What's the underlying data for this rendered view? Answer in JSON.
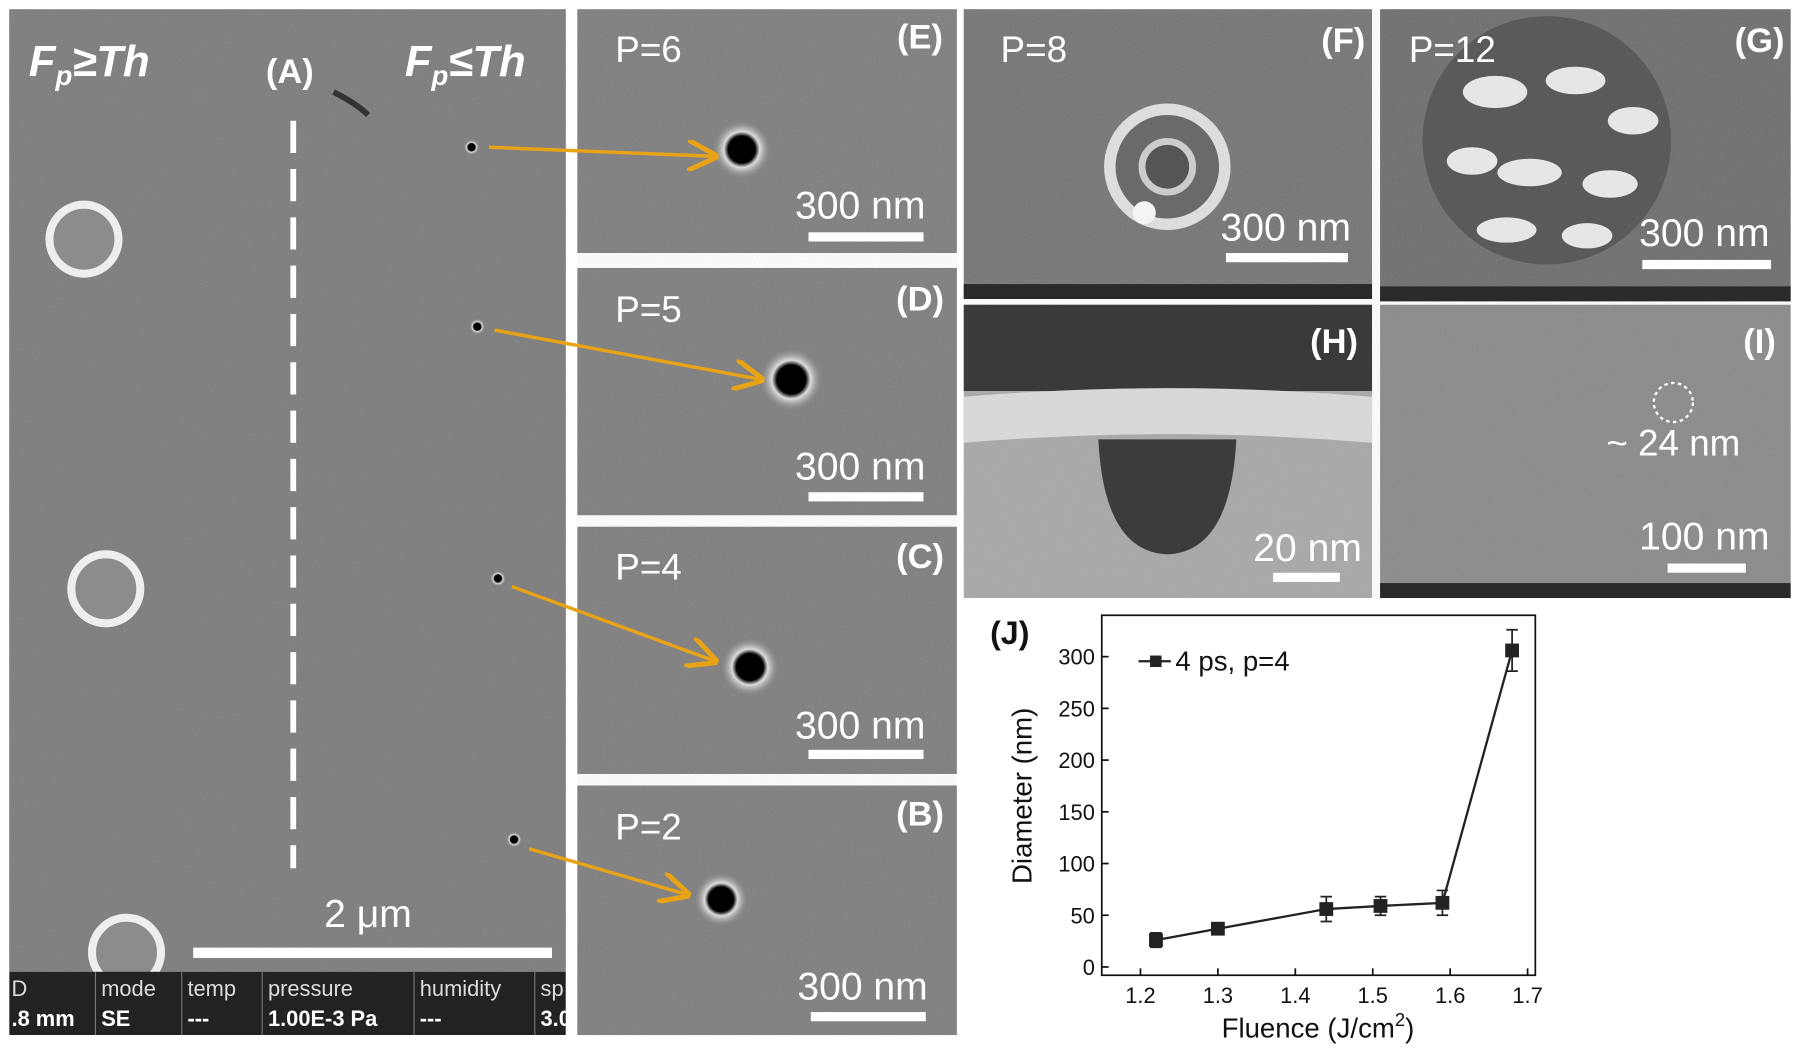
{
  "panels": {
    "A": {
      "label": "(A)",
      "left_heading": {
        "main": "F",
        "sub": "p",
        "rest": "≥Th"
      },
      "right_heading": {
        "main": "F",
        "sub": "p",
        "rest": "≤Th"
      },
      "scale": "2 μm"
    },
    "E": {
      "label": "(E)",
      "pulses": "P=6",
      "scale": "300 nm"
    },
    "D": {
      "label": "(D)",
      "pulses": "P=5",
      "scale": "300 nm"
    },
    "C": {
      "label": "(C)",
      "pulses": "P=4",
      "scale": "300 nm"
    },
    "B": {
      "label": "(B)",
      "pulses": "P=2",
      "scale": "300 nm"
    },
    "F": {
      "label": "(F)",
      "pulses": "P=8",
      "scale": "300 nm"
    },
    "G": {
      "label": "(G)",
      "pulses": "P=12",
      "scale": "300 nm"
    },
    "H": {
      "label": "(H)",
      "scale": "20 nm"
    },
    "I": {
      "label": "(I)",
      "annotation": "~ 24 nm",
      "scale": "100 nm"
    }
  },
  "info_bar": {
    "headers": [
      "D",
      "mode",
      "temp",
      "pressure",
      "humidity",
      "sp"
    ],
    "values": [
      ".8 mm",
      "SE",
      "---",
      "1.00E-3 Pa",
      "---",
      "3.0"
    ]
  },
  "chart_data": {
    "type": "line",
    "label": "(J)",
    "ylabel": "Diameter (nm)",
    "xlabel": {
      "main": "Fluence (J/cm",
      "sup": "2",
      "end": ")"
    },
    "x": [
      1.22,
      1.3,
      1.44,
      1.51,
      1.59,
      1.68
    ],
    "series": [
      {
        "name": "4 ps, p=4",
        "color": "#222222",
        "marker": "square",
        "values": [
          26,
          37,
          56,
          59,
          62,
          306
        ],
        "errors": [
          7,
          3,
          12,
          9,
          12,
          20
        ]
      }
    ],
    "xlim": [
      1.15,
      1.71
    ],
    "ylim": [
      -8,
      340
    ],
    "xticks": [
      1.2,
      1.3,
      1.4,
      1.5,
      1.6,
      1.7
    ],
    "yticks": [
      0,
      50,
      100,
      150,
      200,
      250,
      300
    ]
  }
}
